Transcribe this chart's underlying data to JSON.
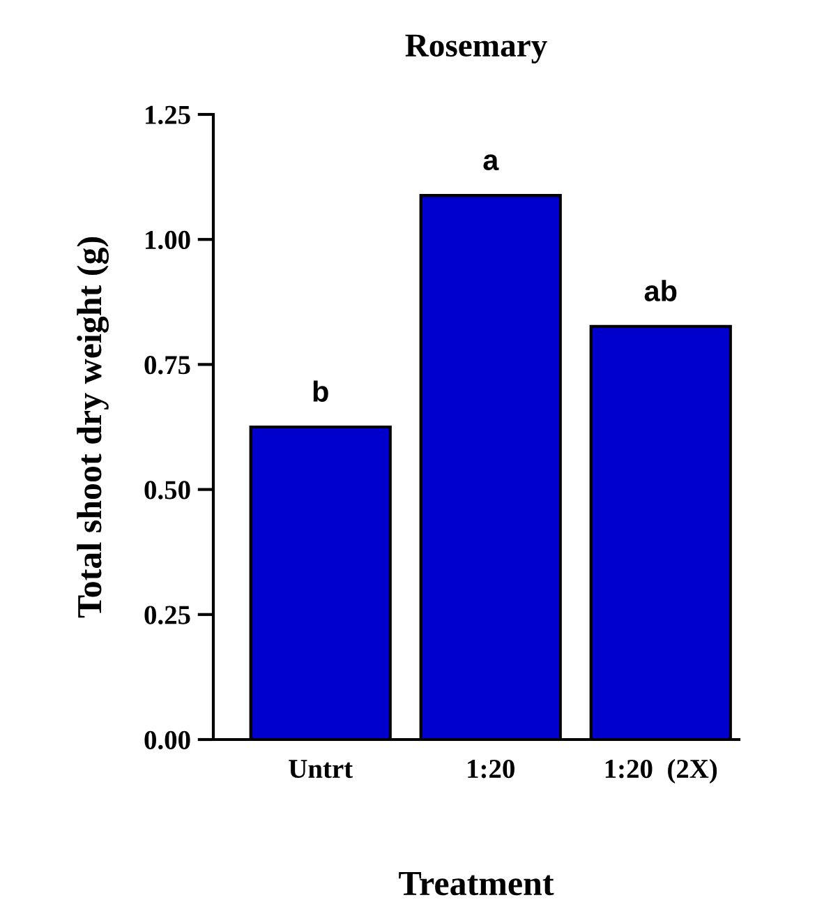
{
  "chart_data": {
    "type": "bar",
    "title": "Rosemary",
    "xlabel": "Treatment",
    "ylabel": "Total shoot dry weight (g)",
    "categories": [
      "Untrt",
      "1:20",
      "1:20  (2X)"
    ],
    "values": [
      0.625,
      1.088,
      0.826
    ],
    "color": "#0000cc",
    "ylim": [
      0,
      1.25
    ],
    "yticks": [
      {
        "value": 0,
        "label": "0.00"
      },
      {
        "value": 0.25,
        "label": "0.25"
      },
      {
        "value": 0.5,
        "label": "0.50"
      },
      {
        "value": 0.75,
        "label": "0.75"
      },
      {
        "value": 1.0,
        "label": "1.00"
      },
      {
        "value": 1.25,
        "label": "1.25"
      }
    ],
    "annotations": [
      {
        "text": "b",
        "x": "Untrt",
        "y": 0.625
      },
      {
        "text": "a",
        "x": "1:20",
        "y": 1.088
      },
      {
        "text": "ab",
        "x": "1:20  (2X)",
        "y": 0.826
      }
    ],
    "grid": false,
    "legend": false
  }
}
